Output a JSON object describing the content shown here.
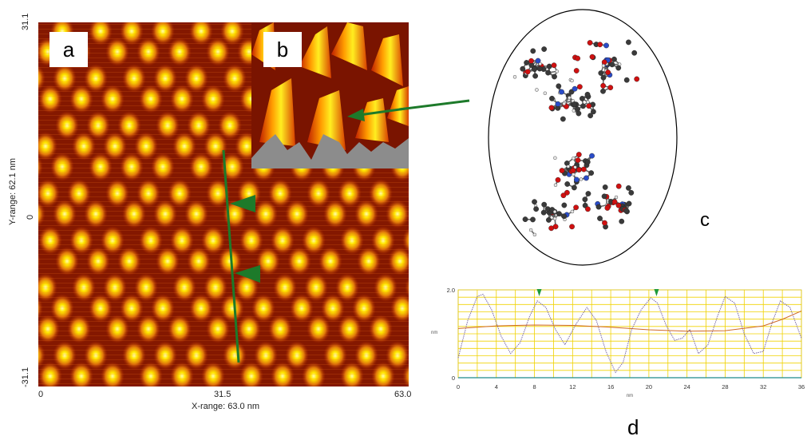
{
  "panels": {
    "a": "a",
    "b": "b",
    "c": "c",
    "d": "d"
  },
  "stm_image": {
    "x_axis_label": "X-range:  63.0 nm",
    "y_axis_label": "Y-range:  62.1 nm",
    "x_ticks": [
      "0",
      "31.5",
      "63.0"
    ],
    "y_ticks": [
      "31.1",
      "0",
      "-31.1"
    ]
  },
  "colors": {
    "stm_dark": "#3a0500",
    "stm_mid": "#c83a00",
    "stm_bright": "#ffe600",
    "profile_line": "#1d7a2a",
    "grid": "#f0d200",
    "profile_trace": "#7a6aa8",
    "baseline_trace": "#d06a28"
  },
  "chart_data": {
    "type": "line",
    "title": "",
    "xlabel": "nm",
    "ylabel": "nm",
    "xlim": [
      0,
      36
    ],
    "ylim": [
      0,
      2.0
    ],
    "x_ticks": [
      "0",
      "4",
      "8",
      "12",
      "16",
      "20",
      "24",
      "28",
      "32",
      "36"
    ],
    "y_ticks": [
      "0",
      "2.0"
    ],
    "markers_x": [
      8.5,
      20.8
    ],
    "series": [
      {
        "x": [
          0,
          1,
          2,
          2.6,
          3.5,
          4.5,
          5.5,
          6.5,
          7.5,
          8.3,
          9.2,
          10.2,
          11.2,
          12.3,
          13.5,
          14.5,
          15.5,
          16.5,
          17.3,
          18.2,
          19.2,
          20.2,
          20.9,
          21.8,
          22.7,
          23.5,
          24.3,
          25.2,
          26.2,
          27.2,
          28.0,
          29.0,
          30.0,
          31.0,
          32.0,
          33.0,
          33.8,
          34.8,
          36
        ],
        "values": [
          0.45,
          1.3,
          1.85,
          1.9,
          1.55,
          0.95,
          0.55,
          0.8,
          1.4,
          1.75,
          1.6,
          1.1,
          0.75,
          1.2,
          1.6,
          1.3,
          0.6,
          0.12,
          0.35,
          1.1,
          1.55,
          1.82,
          1.7,
          1.2,
          0.85,
          0.9,
          1.1,
          0.55,
          0.75,
          1.4,
          1.85,
          1.7,
          1.0,
          0.55,
          0.6,
          1.3,
          1.75,
          1.6,
          0.9
        ]
      },
      {
        "x": [
          0,
          4,
          8,
          12,
          16,
          20,
          24,
          28,
          32,
          34,
          36
        ],
        "values": [
          1.12,
          1.18,
          1.2,
          1.19,
          1.15,
          1.09,
          1.06,
          1.07,
          1.18,
          1.33,
          1.52
        ]
      }
    ]
  }
}
